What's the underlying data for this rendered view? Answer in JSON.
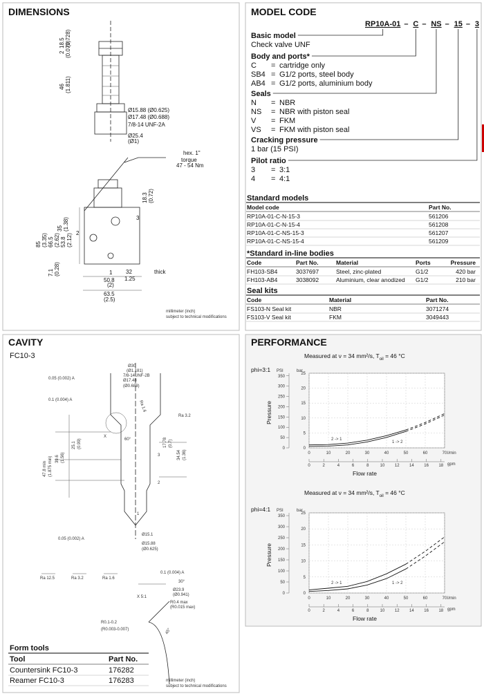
{
  "dimensions": {
    "title": "DIMENSIONS",
    "labels": [
      "18.5",
      "(0.728)",
      "2",
      "(0.079)",
      "46",
      "(1.811)",
      "Ø15.88 (Ø0.625)",
      "Ø17.48 (Ø0.688)",
      "7/8-14 UNF-2A",
      "Ø25.4",
      "(Ø1)",
      "hex. 1\"",
      "torque",
      "47 - 54 Nm",
      "18.3",
      "(0.72)",
      "85",
      "(3.35)",
      "66.5",
      "(2.62)",
      "53.8",
      "(2.12)",
      "35",
      "(1.38)",
      "7.1",
      "(0.28)",
      "1",
      "2",
      "3",
      "32",
      "1.25",
      "thick",
      "50.8",
      "(2)",
      "63.5",
      "(2.5)"
    ],
    "note": [
      "millimeter (inch)",
      "subject to technical modifications"
    ]
  },
  "model_code": {
    "title": "MODEL CODE",
    "code": [
      "RP10A-01",
      "C",
      "NS",
      "15",
      "3"
    ],
    "separator": "–",
    "eq": "=",
    "groups": [
      {
        "heading": "Basic model",
        "text": "Check valve UNF"
      },
      {
        "heading": "Body and ports*",
        "rows": [
          [
            "C",
            "cartridge only"
          ],
          [
            "SB4",
            "G1/2 ports, steel body"
          ],
          [
            "AB4",
            "G1/2 ports, aluminium body"
          ]
        ]
      },
      {
        "heading": "Seals",
        "rows": [
          [
            "N",
            "NBR"
          ],
          [
            "NS",
            "NBR with piston seal"
          ],
          [
            "V",
            "FKM"
          ],
          [
            "VS",
            "FKM with piston seal"
          ]
        ]
      },
      {
        "heading": "Cracking pressure",
        "text": "1 bar (15 PSI)"
      },
      {
        "heading": "Pilot ratio",
        "rows": [
          [
            "3",
            "3:1"
          ],
          [
            "4",
            "4:1"
          ]
        ]
      }
    ]
  },
  "standard_models": {
    "title": "Standard models",
    "header": [
      "Model code",
      "Part No."
    ],
    "rows": [
      [
        "RP10A-01-C-N-15-3",
        "561206"
      ],
      [
        "RP10A-01-C-N-15-4",
        "561208"
      ],
      [
        "RP10A-01-C-NS-15-3",
        "561207"
      ],
      [
        "RP10A-01-C-NS-15-4",
        "561209"
      ]
    ]
  },
  "inline_bodies": {
    "title": "*Standard in-line bodies",
    "header": [
      "Code",
      "Part No.",
      "Material",
      "Ports",
      "Pressure"
    ],
    "rows": [
      [
        "FH103-SB4",
        "3037697",
        "Steel, zinc-plated",
        "G1/2",
        "420 bar"
      ],
      [
        "FH103-AB4",
        "3038092",
        "Aluminium, clear anodized",
        "G1/2",
        "210 bar"
      ]
    ]
  },
  "seal_kits": {
    "title": "Seal kits",
    "header": [
      "Code",
      "Material",
      "Part No."
    ],
    "rows": [
      [
        "FS103-N Seal kit",
        "NBR",
        "3071274"
      ],
      [
        "FS103-V Seal kit",
        "FKM",
        "3049443"
      ]
    ]
  },
  "cavity": {
    "title": "CAVITY",
    "subtitle": "FC10-3",
    "labels": [
      "Ø30",
      "(Ø1.181)",
      "7/8-14UNF-2B",
      "Ø17.48",
      "(Ø0.688)",
      "0.05 (0.002) A",
      "0.1 (0.004) A",
      "Ra 1.6",
      "Ra 3.2",
      "X",
      "60°",
      "3",
      "2",
      "1",
      "47.8 min",
      "(1.875 min)",
      "39.6",
      "(1.56)",
      "25.1",
      "(0.99)",
      "17.78",
      "(0.7)",
      "34.54",
      "(1.36)",
      "Ø15.1",
      "Ø15.88",
      "(Ø0.625)",
      "0.05 (0.002) A",
      "Ra 12.5",
      "Ra 3.2",
      "Ra 1.6",
      "0.1 (0.004) A",
      "X 5:1",
      "30°",
      "Ø23.9",
      "(Ø0.941)",
      "R0.4 max",
      "(R0.015 max)",
      "R0.1-0.2",
      "(R0.003-0.007)",
      "45°"
    ],
    "form_tools": {
      "title": "Form tools",
      "header": [
        "Tool",
        "Part No."
      ],
      "rows": [
        [
          "Countersink FC10-3",
          "176282"
        ],
        [
          "Reamer FC10-3",
          "176283"
        ]
      ]
    },
    "note": [
      "millimeter (inch)",
      "subject to technical modifications"
    ]
  },
  "performance": {
    "title": "PERFORMANCE",
    "charts": [
      {
        "type": "line",
        "condition": [
          "Measured at ν = 34 mm²/s, T",
          "oil",
          " = 46 °C"
        ],
        "phi": "phi=3:1",
        "y_label": "Pressure",
        "x_label": "Flow rate",
        "y_unit": "bar",
        "y2_unit": "PSI",
        "x_unit": "l/min",
        "x2_unit": "gpm",
        "x": [
          0,
          10,
          20,
          30,
          40,
          50,
          60,
          70
        ],
        "xlim": [
          0,
          70
        ],
        "xticks": [
          0,
          10,
          20,
          30,
          40,
          50,
          60,
          70
        ],
        "x2lim": [
          0,
          18.49
        ],
        "x2ticks": [
          0,
          2,
          4,
          6,
          8,
          10,
          12,
          14,
          16,
          18
        ],
        "ylim": [
          0,
          25
        ],
        "yticks": [
          0,
          5,
          10,
          15,
          20,
          25
        ],
        "y2lim": [
          0,
          362.6
        ],
        "y2ticks": [
          0,
          50,
          100,
          150,
          200,
          250,
          300,
          350
        ],
        "grid": true,
        "dashed_from": 55,
        "series": [
          {
            "name": "2 -> 1",
            "color": "#111",
            "values": [
              1,
              1.1,
              1.6,
              2.6,
              4.1,
              6,
              8.5,
              11.5
            ]
          },
          {
            "name": "1 -> 2",
            "color": "#111",
            "values": [
              0.5,
              0.6,
              1,
              2,
              3.5,
              5.5,
              8,
              11
            ]
          }
        ]
      },
      {
        "type": "line",
        "condition": [
          "Measured at ν = 34 mm²/s, T",
          "oil",
          " = 46 °C"
        ],
        "phi": "phi=4:1",
        "y_label": "Pressure",
        "x_label": "Flow rate",
        "y_unit": "bar",
        "y2_unit": "PSI",
        "x_unit": "l/min",
        "x2_unit": "gpm",
        "x": [
          0,
          10,
          20,
          30,
          40,
          50,
          60,
          70
        ],
        "xlim": [
          0,
          70
        ],
        "xticks": [
          0,
          10,
          20,
          30,
          40,
          50,
          60,
          70
        ],
        "x2lim": [
          0,
          18.49
        ],
        "x2ticks": [
          0,
          2,
          4,
          6,
          8,
          10,
          12,
          14,
          16,
          18
        ],
        "ylim": [
          0,
          25
        ],
        "yticks": [
          0,
          5,
          10,
          15,
          20,
          25
        ],
        "y2lim": [
          0,
          362.6
        ],
        "y2ticks": [
          0,
          50,
          100,
          150,
          200,
          250,
          300,
          350
        ],
        "grid": true,
        "dashed_from": 55,
        "series": [
          {
            "name": "2 -> 1",
            "color": "#111",
            "values": [
              1,
              1.5,
              2.1,
              3.6,
              6,
              9,
              13,
              17.5
            ]
          },
          {
            "name": "1 -> 2",
            "color": "#111",
            "values": [
              0.5,
              0.8,
              1.3,
              2.5,
              4.5,
              7.5,
              11.5,
              16
            ]
          }
        ]
      }
    ]
  }
}
